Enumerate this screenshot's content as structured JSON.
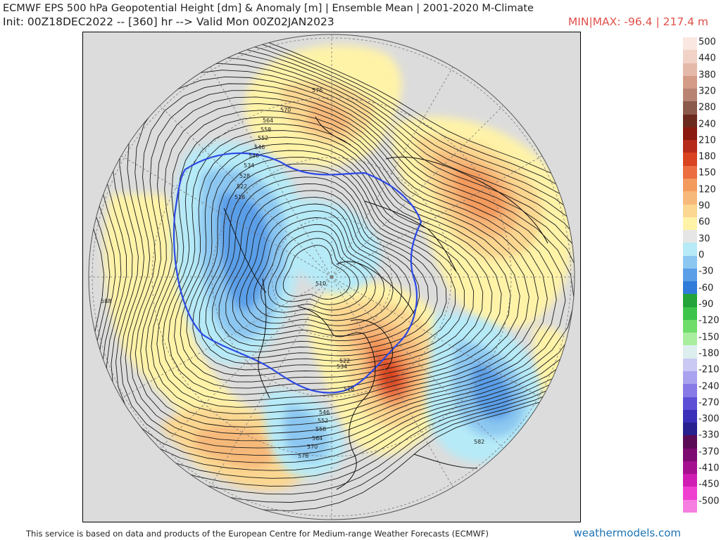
{
  "header": {
    "title": "ECMWF EPS 500 hPa Geopotential Height [dm] & Anomaly [m] | Ensemble Mean | 2001-2020 M-Climate",
    "init_line": "Init: 00Z18DEC2022 -- [360] hr --> Valid Mon 00Z02JAN2023",
    "minmax": "MIN|MAX: -96.4 | 217.4 m"
  },
  "footer": {
    "credit": "This service is based on data and products of the European Centre for Medium-range Weather Forecasts (ECMWF)",
    "site": "weathermodels.com"
  },
  "map": {
    "contour_labels": [
      "576",
      "570",
      "564",
      "558",
      "552",
      "546",
      "540",
      "534",
      "528",
      "522",
      "516",
      "510",
      "518",
      "588",
      "582",
      "576",
      "570",
      "564",
      "558",
      "552",
      "546",
      "534",
      "522"
    ],
    "colors": {
      "background_gray": "#dcdcdc",
      "pos30": "#fff3a8",
      "pos60": "#fbd791",
      "pos90": "#f7b97a",
      "pos120": "#f39a5d",
      "pos150": "#ec6d3f",
      "pos180": "#d9431f",
      "neg30": "#b6eaf7",
      "neg60": "#8cc7f1",
      "neg90": "#5a9ee8",
      "line_558": "#2b48e6"
    }
  },
  "colorbar": {
    "labels": [
      "500",
      "440",
      "380",
      "320",
      "280",
      "240",
      "210",
      "180",
      "150",
      "120",
      "90",
      "60",
      "30",
      "0",
      "-30",
      "-60",
      "-90",
      "-120",
      "-150",
      "-180",
      "-210",
      "-240",
      "-270",
      "-300",
      "-330",
      "-370",
      "-410",
      "-450",
      "-500"
    ],
    "colors": [
      "#fbe7e1",
      "#f1d2c6",
      "#e5b9a9",
      "#d49c86",
      "#b98373",
      "#8c5a4c",
      "#6b2a1e",
      "#8a1a10",
      "#b52a18",
      "#d9431f",
      "#ec6d3f",
      "#f39a5d",
      "#f7b97a",
      "#fbd791",
      "#fff3a8",
      "#e6e6e6",
      "#b6eaf7",
      "#8cc7f1",
      "#5a9ee8",
      "#2f7bd9",
      "#23a33a",
      "#3cc54a",
      "#6fdd6a",
      "#a8ee9e",
      "#ddeeee",
      "#c9c9f4",
      "#a9a2ee",
      "#8779e6",
      "#5c4fd6",
      "#3a2fb8",
      "#28208e",
      "#5a0b55",
      "#7d0b70",
      "#a5108f",
      "#d01db4",
      "#ee3fd0",
      "#f57ee0"
    ]
  }
}
